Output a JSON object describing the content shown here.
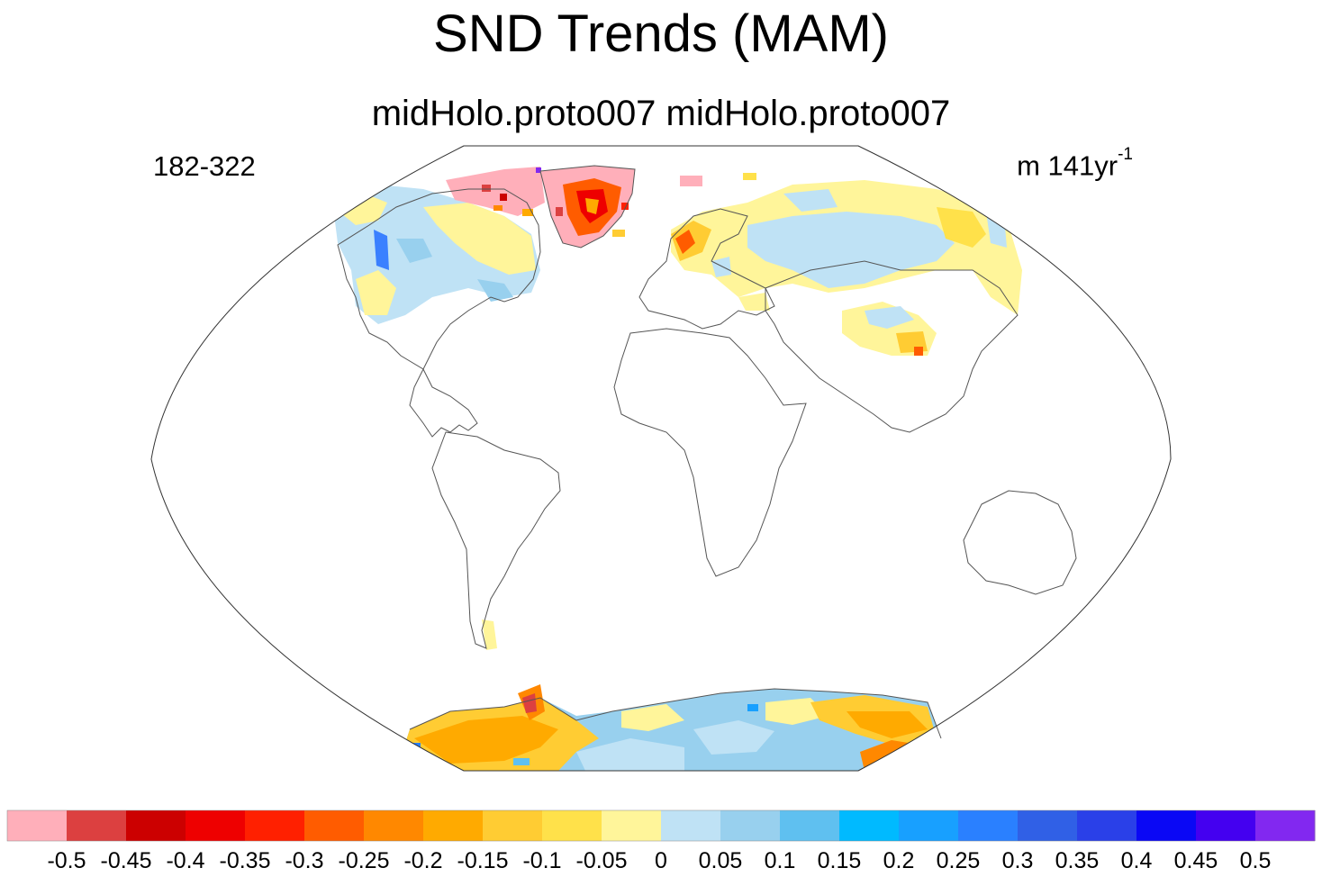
{
  "header": {
    "title": "SND Trends (MAM)",
    "subtitle": "midHolo.proto007  midHolo.proto007",
    "left_label": "182-322",
    "right_label_base": "m 141yr",
    "right_label_exp": "-1"
  },
  "colorbar": {
    "colors": [
      "#ffafba",
      "#dc4040",
      "#cc0000",
      "#ee0000",
      "#ff2000",
      "#ff5c00",
      "#ff8800",
      "#ffaa00",
      "#ffcc33",
      "#ffe14a",
      "#fff59a",
      "#bfe2f5",
      "#98d0ee",
      "#5fc0f0",
      "#00baff",
      "#18a0ff",
      "#2a80ff",
      "#3060e6",
      "#2a40e8",
      "#0a08f5",
      "#4400f0",
      "#8228f0"
    ],
    "labels": [
      "-0.5",
      "-0.45",
      "-0.4",
      "-0.35",
      "-0.3",
      "-0.25",
      "-0.2",
      "-0.15",
      "-0.1",
      "-0.05",
      "0",
      "0.05",
      "0.1",
      "0.15",
      "0.2",
      "0.25",
      "0.3",
      "0.35",
      "0.4",
      "0.45",
      "0.5"
    ]
  },
  "map": {
    "projection": "Winkel tripel / Robinson-like global",
    "regions": [
      {
        "name": "greenland",
        "trend": "negative",
        "colors": [
          "#ffafba",
          "#ff5c00",
          "#ee0000",
          "#ffaa00"
        ]
      },
      {
        "name": "north-america",
        "trend": "mixed",
        "colors": [
          "#bfe2f5",
          "#fff59a",
          "#98d0ee"
        ]
      },
      {
        "name": "eurasia",
        "trend": "mixed",
        "colors": [
          "#bfe2f5",
          "#fff59a",
          "#ffe14a"
        ]
      },
      {
        "name": "tibet",
        "trend": "slight-negative",
        "colors": [
          "#fff59a",
          "#ffcc33"
        ]
      },
      {
        "name": "antarctica",
        "trend": "mixed",
        "colors": [
          "#ffaa00",
          "#ffcc33",
          "#bfe2f5",
          "#98d0ee"
        ]
      }
    ]
  }
}
